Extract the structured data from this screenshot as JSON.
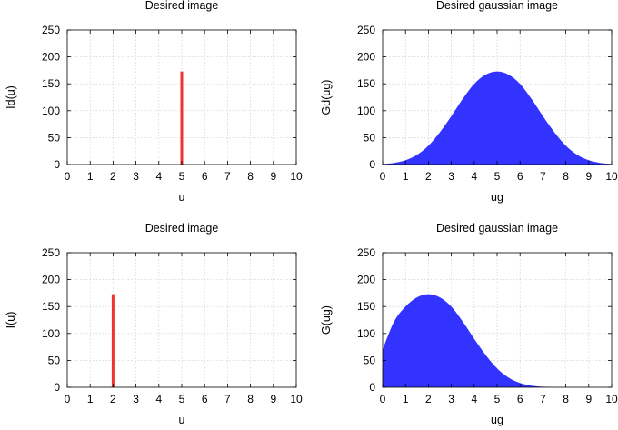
{
  "chart_data": [
    {
      "type": "bar",
      "title": "Desired image",
      "xlabel": "u",
      "ylabel": "Id(u)",
      "xlim": [
        0,
        10
      ],
      "ylim": [
        0,
        250
      ],
      "xticks": [
        0,
        1,
        2,
        3,
        4,
        5,
        6,
        7,
        8,
        9,
        10
      ],
      "yticks": [
        0,
        50,
        100,
        150,
        200,
        250
      ],
      "grid": true,
      "color": "#ee3333",
      "points": [
        {
          "x": 5,
          "y": 173
        }
      ]
    },
    {
      "type": "area",
      "title": "Desired gaussian image",
      "xlabel": "ug",
      "ylabel": "Gd(ug)",
      "xlim": [
        0,
        10
      ],
      "ylim": [
        0,
        250
      ],
      "xticks": [
        0,
        1,
        2,
        3,
        4,
        5,
        6,
        7,
        8,
        9,
        10
      ],
      "yticks": [
        0,
        50,
        100,
        150,
        200,
        250
      ],
      "grid": true,
      "color": "#3333ff",
      "x": [
        0,
        0.5,
        1,
        1.5,
        2,
        2.5,
        3,
        3.5,
        4,
        4.5,
        5,
        5.5,
        6,
        6.5,
        7,
        7.5,
        8,
        8.5,
        9,
        9.5,
        10
      ],
      "y": [
        1,
        3,
        8,
        18,
        35,
        60,
        90,
        122,
        150,
        167,
        173,
        167,
        150,
        122,
        90,
        60,
        35,
        18,
        8,
        3,
        1
      ]
    },
    {
      "type": "bar",
      "title": "Desired image",
      "xlabel": "u",
      "ylabel": "I(u)",
      "xlim": [
        0,
        10
      ],
      "ylim": [
        0,
        250
      ],
      "xticks": [
        0,
        1,
        2,
        3,
        4,
        5,
        6,
        7,
        8,
        9,
        10
      ],
      "yticks": [
        0,
        50,
        100,
        150,
        200,
        250
      ],
      "grid": true,
      "color": "#ee3333",
      "points": [
        {
          "x": 2,
          "y": 173
        }
      ]
    },
    {
      "type": "area",
      "title": "Desired gaussian image",
      "xlabel": "ug",
      "ylabel": "G(ug)",
      "xlim": [
        0,
        10
      ],
      "ylim": [
        0,
        250
      ],
      "xticks": [
        0,
        1,
        2,
        3,
        4,
        5,
        6,
        7,
        8,
        9,
        10
      ],
      "yticks": [
        0,
        50,
        100,
        150,
        200,
        250
      ],
      "grid": true,
      "color": "#3333ff",
      "x": [
        0,
        0.5,
        1,
        1.5,
        2,
        2.5,
        3,
        3.5,
        4,
        4.5,
        5,
        5.5,
        6,
        6.5,
        7,
        7.5,
        8,
        8.5,
        9,
        9.5,
        10
      ],
      "y": [
        70,
        122,
        150,
        167,
        173,
        167,
        150,
        122,
        90,
        60,
        35,
        18,
        8,
        3,
        1,
        0,
        0,
        0,
        0,
        0,
        0
      ]
    }
  ]
}
